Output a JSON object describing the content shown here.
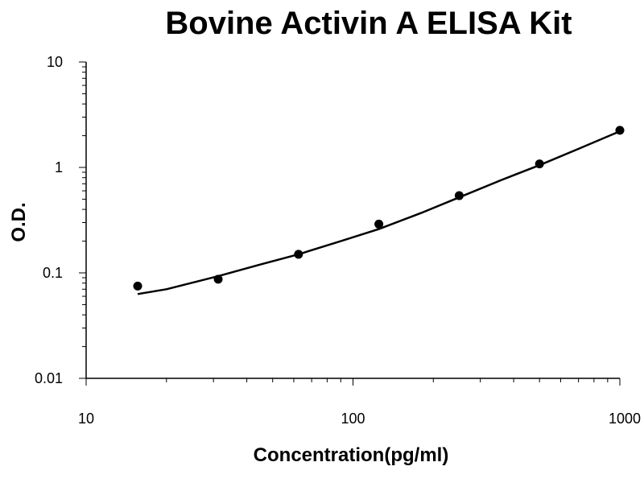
{
  "chart_data": {
    "type": "scatter",
    "title": "Bovine Activin A ELISA Kit",
    "xlabel": "Concentration(pg/ml)",
    "ylabel": "O.D.",
    "x_scale": "log",
    "y_scale": "log",
    "xlim": [
      10,
      1000
    ],
    "ylim": [
      0.01,
      10
    ],
    "x_ticks": [
      {
        "value": 10,
        "label": "10"
      },
      {
        "value": 100,
        "label": "100"
      },
      {
        "value": 1000,
        "label": "1000"
      }
    ],
    "y_ticks": [
      {
        "value": 0.01,
        "label": "0.01"
      },
      {
        "value": 0.1,
        "label": "0.1"
      },
      {
        "value": 1,
        "label": "1"
      },
      {
        "value": 10,
        "label": "10"
      }
    ],
    "grid": false,
    "legend": "none",
    "series": [
      {
        "x": [
          15.6,
          31.25,
          62.5,
          125,
          250,
          500,
          1000
        ],
        "y": [
          0.075,
          0.087,
          0.15,
          0.29,
          0.54,
          1.08,
          2.25
        ]
      }
    ],
    "fit_curve": {
      "x": [
        15.6,
        20,
        31.25,
        45,
        62.5,
        90,
        125,
        180,
        250,
        360,
        500,
        700,
        1000
      ],
      "y": [
        0.063,
        0.07,
        0.093,
        0.12,
        0.15,
        0.2,
        0.26,
        0.37,
        0.52,
        0.76,
        1.05,
        1.5,
        2.2
      ]
    },
    "colors": {
      "points": "#000000",
      "line": "#000000",
      "axis": "#000000"
    }
  }
}
